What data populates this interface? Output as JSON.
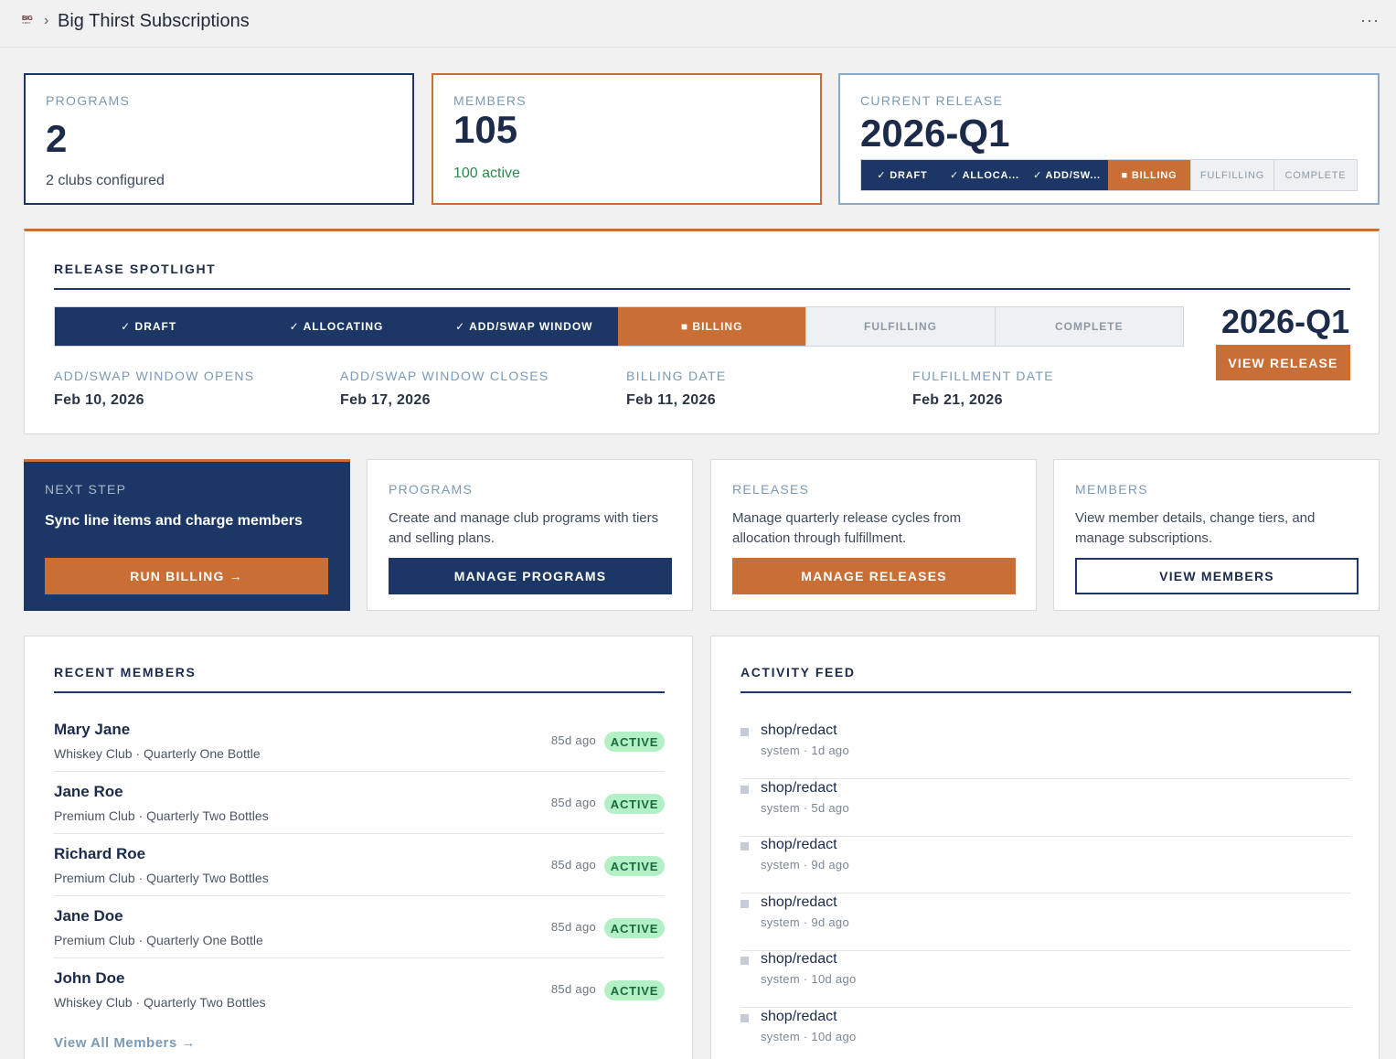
{
  "header": {
    "logo_text": "BIG",
    "logo_sub": "THIRST",
    "separator": "›",
    "title": "Big Thirst Subscriptions",
    "more": "···"
  },
  "stats": {
    "programs": {
      "label": "PROGRAMS",
      "value": "2",
      "sub": "2 clubs configured"
    },
    "members": {
      "label": "MEMBERS",
      "value": "105",
      "sub": "100 active",
      "sub_color": "#2d8a4e"
    },
    "release": {
      "label": "CURRENT RELEASE",
      "value": "2026-Q1",
      "steps": [
        {
          "label": "✓ DRAFT",
          "state": "done"
        },
        {
          "label": "✓ ALLOCA...",
          "state": "done"
        },
        {
          "label": "✓ ADD/SW...",
          "state": "done"
        },
        {
          "label": "■ BILLING",
          "state": "current"
        },
        {
          "label": "FULFILLING",
          "state": "todo"
        },
        {
          "label": "COMPLETE",
          "state": "todo"
        }
      ]
    }
  },
  "spotlight": {
    "title": "RELEASE SPOTLIGHT",
    "release": "2026-Q1",
    "button": "VIEW RELEASE",
    "steps": [
      {
        "label": "✓ DRAFT",
        "state": "done"
      },
      {
        "label": "✓ ALLOCATING",
        "state": "done"
      },
      {
        "label": "✓ ADD/SWAP WINDOW",
        "state": "done"
      },
      {
        "label": "■ BILLING",
        "state": "current"
      },
      {
        "label": "FULFILLING",
        "state": "todo"
      },
      {
        "label": "COMPLETE",
        "state": "todo"
      }
    ],
    "dates": [
      {
        "label": "ADD/SWAP WINDOW OPENS",
        "value": "Feb 10, 2026"
      },
      {
        "label": "ADD/SWAP WINDOW CLOSES",
        "value": "Feb 17, 2026"
      },
      {
        "label": "BILLING DATE",
        "value": "Feb 11, 2026"
      },
      {
        "label": "FULFILLMENT DATE",
        "value": "Feb 21, 2026"
      }
    ]
  },
  "cards": {
    "next": {
      "label": "NEXT STEP",
      "desc": "Sync line items and charge members",
      "button": "RUN BILLING →"
    },
    "programs": {
      "label": "PROGRAMS",
      "desc": "Create and manage club programs with tiers and selling plans.",
      "button": "MANAGE PROGRAMS"
    },
    "releases": {
      "label": "RELEASES",
      "desc": "Manage quarterly release cycles from allocation through fulfillment.",
      "button": "MANAGE RELEASES"
    },
    "members": {
      "label": "MEMBERS",
      "desc": "View member details, change tiers, and manage subscriptions.",
      "button": "VIEW MEMBERS"
    }
  },
  "recent_members": {
    "title": "RECENT MEMBERS",
    "view_all": "View All Members →",
    "rows": [
      {
        "name": "Mary Jane",
        "meta": "Whiskey Club · Quarterly One Bottle",
        "ago": "85d ago",
        "status": "ACTIVE"
      },
      {
        "name": "Jane Roe",
        "meta": "Premium Club · Quarterly Two Bottles",
        "ago": "85d ago",
        "status": "ACTIVE"
      },
      {
        "name": "Richard Roe",
        "meta": "Premium Club · Quarterly Two Bottles",
        "ago": "85d ago",
        "status": "ACTIVE"
      },
      {
        "name": "Jane Doe",
        "meta": "Premium Club · Quarterly One Bottle",
        "ago": "85d ago",
        "status": "ACTIVE"
      },
      {
        "name": "John Doe",
        "meta": "Whiskey Club · Quarterly Two Bottles",
        "ago": "85d ago",
        "status": "ACTIVE"
      }
    ]
  },
  "activity": {
    "title": "ACTIVITY FEED",
    "rows": [
      {
        "text": "shop/redact",
        "by": "system · 1d ago"
      },
      {
        "text": "shop/redact",
        "by": "system · 5d ago"
      },
      {
        "text": "shop/redact",
        "by": "system · 9d ago"
      },
      {
        "text": "shop/redact",
        "by": "system · 9d ago"
      },
      {
        "text": "shop/redact",
        "by": "system · 10d ago"
      },
      {
        "text": "shop/redact",
        "by": "system · 10d ago"
      }
    ]
  }
}
